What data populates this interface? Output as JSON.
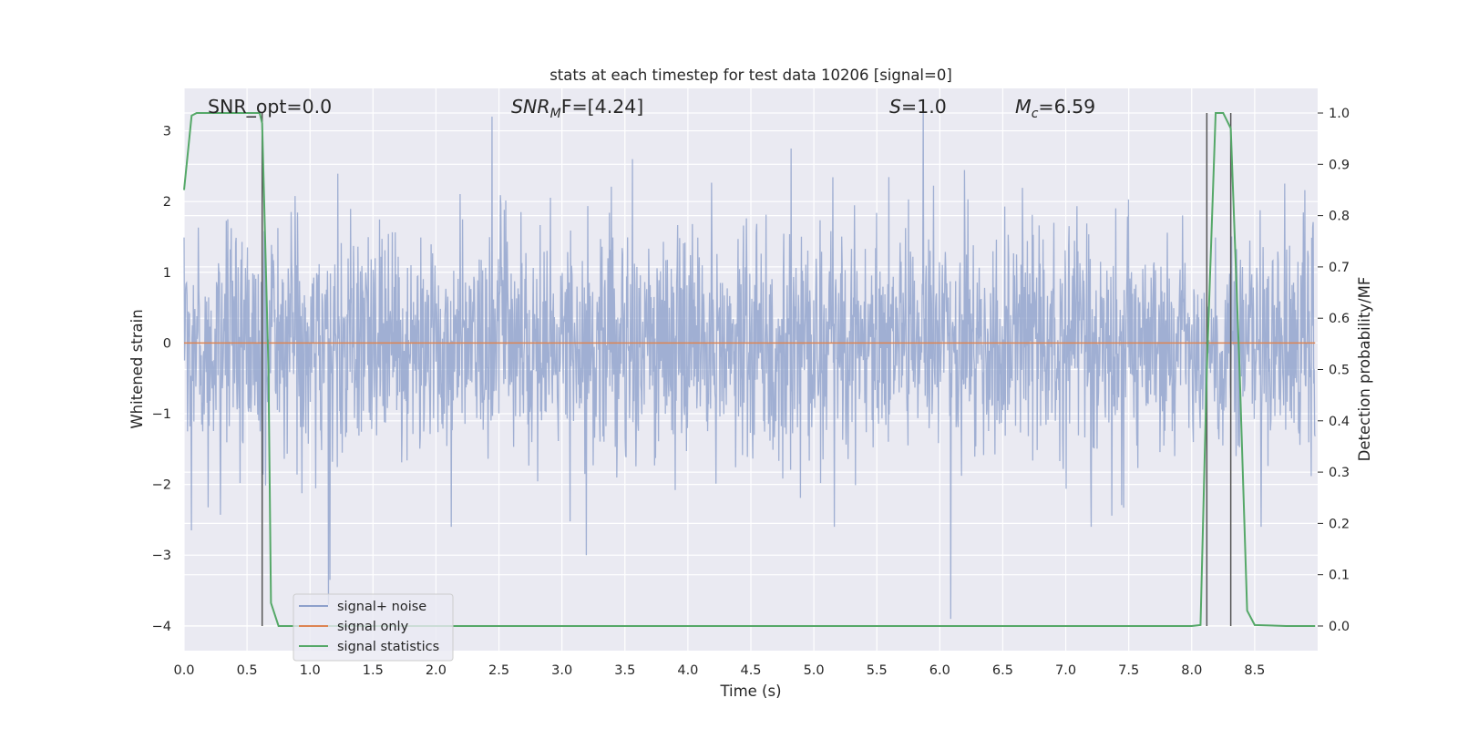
{
  "chart_data": {
    "type": "line",
    "title": "stats at each timestep for test data 10206 [signal=0]",
    "xlabel": "Time (s)",
    "ylabel": "Whitened strain",
    "y2label": "Detection probability/MF",
    "xlim": [
      0.0,
      9.0
    ],
    "ylim": [
      -4.35,
      3.6
    ],
    "y2lim": [
      -0.048,
      1.048
    ],
    "x_ticks": [
      0.0,
      0.5,
      1.0,
      1.5,
      2.0,
      2.5,
      3.0,
      3.5,
      4.0,
      4.5,
      5.0,
      5.5,
      6.0,
      6.5,
      7.0,
      7.5,
      8.0,
      8.5
    ],
    "x_tick_labels": [
      "0.0",
      "0.5",
      "1.0",
      "1.5",
      "2.0",
      "2.5",
      "3.0",
      "3.5",
      "4.0",
      "4.5",
      "5.0",
      "5.5",
      "6.0",
      "6.5",
      "7.0",
      "7.5",
      "8.0",
      "8.5"
    ],
    "y_ticks": [
      -4,
      -3,
      -2,
      -1,
      0,
      1,
      2,
      3
    ],
    "y_tick_labels": [
      "−4",
      "−3",
      "−2",
      "−1",
      "0",
      "1",
      "2",
      "3"
    ],
    "y2_ticks": [
      0.0,
      0.1,
      0.2,
      0.3,
      0.4,
      0.5,
      0.6,
      0.7,
      0.8,
      0.9,
      1.0
    ],
    "y2_tick_labels": [
      "0.0",
      "0.1",
      "0.2",
      "0.3",
      "0.4",
      "0.5",
      "0.6",
      "0.7",
      "0.8",
      "0.9",
      "1.0"
    ],
    "grid": true,
    "legend_position": "lower-left",
    "annotations": {
      "snr_opt": "SNR_opt=0.0",
      "snr_mf_sym": "SNR",
      "snr_mf_sub": "M",
      "snr_mf_rest": "F=[4.24]",
      "s_sym": "S",
      "s_rest": "=1.0",
      "mc_sym": "M",
      "mc_sub": "c",
      "mc_rest": "=6.59"
    },
    "series": [
      {
        "name": "signal+ noise",
        "color": "#8da0cb",
        "axis": "left",
        "description_stats": {
          "n_points": 2304,
          "std": 0.82,
          "outliers": [
            [
              0.06,
              -2.65
            ],
            [
              0.62,
              -2.35
            ],
            [
              1.15,
              -3.7
            ],
            [
              1.16,
              -3.35
            ],
            [
              2.45,
              3.2
            ],
            [
              3.2,
              -3.0
            ],
            [
              5.88,
              3.45
            ],
            [
              6.1,
              -3.9
            ],
            [
              4.83,
              2.75
            ]
          ]
        }
      },
      {
        "name": "signal only",
        "color": "#dd8452",
        "axis": "left",
        "values_constant": 0
      },
      {
        "name": "signal statistics",
        "color": "#55a868",
        "axis": "right",
        "x": [
          0.0,
          0.06,
          0.1,
          0.2,
          0.3,
          0.4,
          0.5,
          0.55,
          0.6,
          0.62,
          0.67,
          0.69,
          0.75,
          1.0,
          2.0,
          3.0,
          4.0,
          5.0,
          6.0,
          7.0,
          7.5,
          8.0,
          8.07,
          8.12,
          8.19,
          8.25,
          8.31,
          8.38,
          8.44,
          8.5,
          8.75,
          8.98
        ],
        "y": [
          0.85,
          0.995,
          1.0,
          1.0,
          1.0,
          1.0,
          1.0,
          1.0,
          1.0,
          0.98,
          0.5,
          0.045,
          0.0,
          0.0,
          0.0,
          0.0,
          0.0,
          0.0,
          0.0,
          0.0,
          0.0,
          0.0,
          0.002,
          0.5,
          1.0,
          1.0,
          0.97,
          0.5,
          0.03,
          0.002,
          0.0,
          0.0
        ]
      }
    ],
    "vertical_lines": [
      {
        "x": 0.62,
        "y_from": 0.0,
        "y_to": 1.0,
        "color": "#555555"
      },
      {
        "x": 8.12,
        "y_from": 0.0,
        "y_to": 1.0,
        "color": "#555555"
      },
      {
        "x": 8.31,
        "y_from": 0.0,
        "y_to": 1.0,
        "color": "#555555"
      }
    ]
  }
}
